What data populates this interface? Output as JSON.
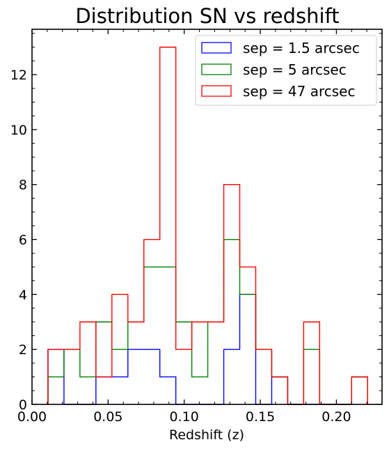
{
  "chart_data": {
    "type": "histogram",
    "title": "Distribution SN vs redshift",
    "xlabel": "Redshift (z)",
    "ylabel": "",
    "xlim": [
      0.0,
      0.23
    ],
    "ylim": [
      0,
      13.65
    ],
    "xticks": [
      0.0,
      0.05,
      0.1,
      0.15,
      0.2
    ],
    "xtick_labels": [
      "0.00",
      "0.05",
      "0.10",
      "0.15",
      "0.20"
    ],
    "yticks": [
      0,
      2,
      4,
      6,
      8,
      10,
      12
    ],
    "ytick_labels": [
      "0",
      "2",
      "4",
      "6",
      "8",
      "10",
      "12"
    ],
    "grid": false,
    "legend_position": "top-right",
    "bin_edges": [
      0.0105,
      0.021,
      0.0315,
      0.042,
      0.0525,
      0.063,
      0.0735,
      0.084,
      0.0945,
      0.105,
      0.1155,
      0.126,
      0.1365,
      0.147,
      0.1575,
      0.168,
      0.1785,
      0.189,
      0.1995,
      0.21,
      0.2205
    ],
    "series": [
      {
        "name": "sep = 1.5 arcsec",
        "color": "#0000ff",
        "counts": [
          2,
          0,
          0,
          1,
          1,
          2,
          2,
          1,
          0,
          0,
          0,
          2,
          4,
          0,
          1,
          0,
          0,
          0,
          0,
          1
        ]
      },
      {
        "name": "sep = 5 arcsec",
        "color": "#008000",
        "counts": [
          1,
          2,
          1,
          3,
          2,
          3,
          5,
          5,
          3,
          1,
          3,
          6,
          4,
          2,
          1,
          0,
          2,
          0,
          0,
          1
        ]
      },
      {
        "name": "sep = 47 arcsec",
        "color": "#ff0000",
        "counts": [
          2,
          2,
          3,
          1,
          4,
          3,
          6,
          13,
          2,
          3,
          3,
          8,
          5,
          2,
          1,
          0,
          3,
          0,
          0,
          1
        ]
      }
    ]
  }
}
